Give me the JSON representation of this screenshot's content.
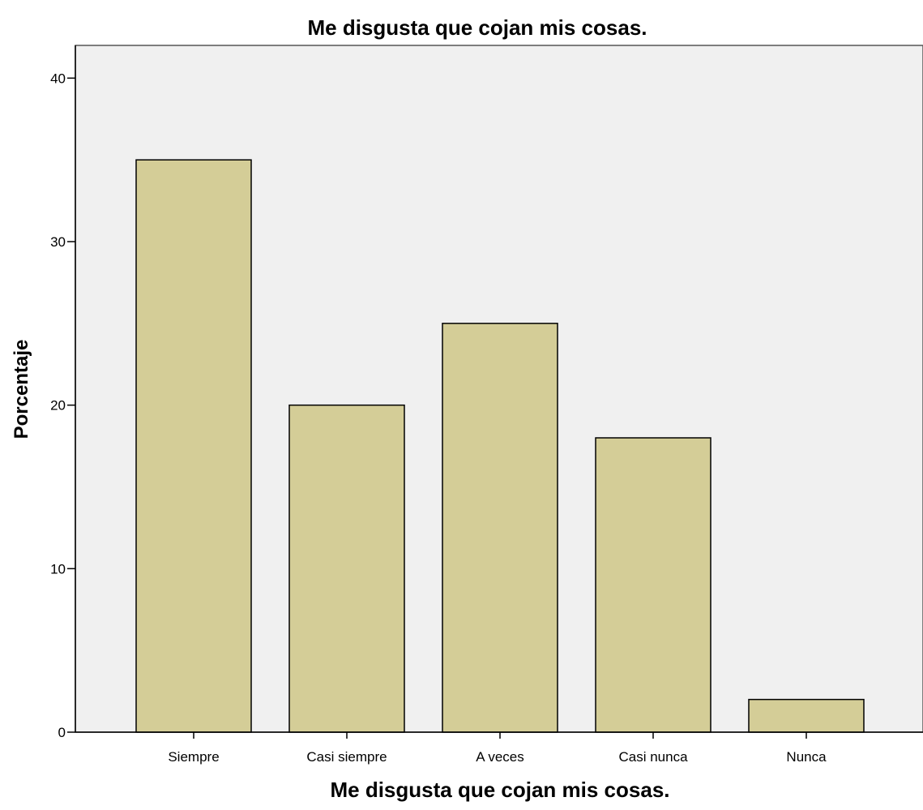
{
  "chart_data": {
    "type": "bar",
    "title": "Me disgusta que cojan mis cosas.",
    "xlabel": "Me disgusta que cojan mis cosas.",
    "ylabel": "Porcentaje",
    "categories": [
      "Siempre",
      "Casi siempre",
      "A veces",
      "Casi nunca",
      "Nunca"
    ],
    "values": [
      35,
      20,
      25,
      18,
      2
    ],
    "ylim": [
      0,
      42
    ],
    "yticks": [
      0,
      10,
      20,
      30,
      40
    ],
    "grid": false,
    "legend": "none",
    "colors": {
      "bar_fill": "#d4cd97",
      "bar_stroke": "#000000",
      "plot_background": "#f0f0f0",
      "axis": "#000000",
      "frame": "#555555"
    }
  }
}
